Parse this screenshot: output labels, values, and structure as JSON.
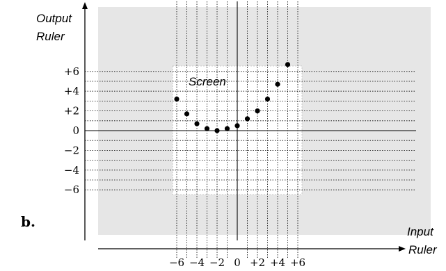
{
  "figure_label": "b.",
  "output_axis": {
    "line1": "Output",
    "line2": "Ruler"
  },
  "input_axis": {
    "line1": "Input",
    "line2": "Ruler"
  },
  "screen_label": "Screen",
  "colors": {
    "background_panel": "#e6e6e6",
    "screen": "#ffffff",
    "axis": "#000000",
    "grid": "#000000",
    "point": "#000000"
  },
  "chart_data": {
    "type": "scatter",
    "title": "",
    "xlabel": "Input Ruler",
    "ylabel": "Output Ruler",
    "x_tick_labels": [
      "−6",
      "−4",
      "−2",
      "0",
      "+2",
      "+4",
      "+6"
    ],
    "y_tick_labels": [
      "+6",
      "+4",
      "+2",
      "0",
      "−2",
      "−4",
      "−6"
    ],
    "x_ticks": [
      -6,
      -4,
      -2,
      0,
      2,
      4,
      6
    ],
    "y_ticks": [
      6,
      4,
      2,
      0,
      -2,
      -4,
      -6
    ],
    "x_grid": [
      -6,
      -5,
      -4,
      -3,
      -2,
      -1,
      0,
      1,
      2,
      3,
      4,
      5,
      6
    ],
    "y_grid": [
      6,
      5,
      4,
      3,
      2,
      1,
      0,
      -1,
      -2,
      -3,
      -4,
      -5,
      -6
    ],
    "grid": true,
    "points": [
      {
        "x": -6,
        "y": 3.2
      },
      {
        "x": -5,
        "y": 1.7
      },
      {
        "x": -4,
        "y": 0.7
      },
      {
        "x": -3,
        "y": 0.2
      },
      {
        "x": -2,
        "y": 0.0
      },
      {
        "x": -1,
        "y": 0.2
      },
      {
        "x": 0,
        "y": 0.5
      },
      {
        "x": 1,
        "y": 1.2
      },
      {
        "x": 2,
        "y": 2.0
      },
      {
        "x": 3,
        "y": 3.2
      },
      {
        "x": 4,
        "y": 4.7
      },
      {
        "x": 5,
        "y": 6.7
      }
    ]
  }
}
